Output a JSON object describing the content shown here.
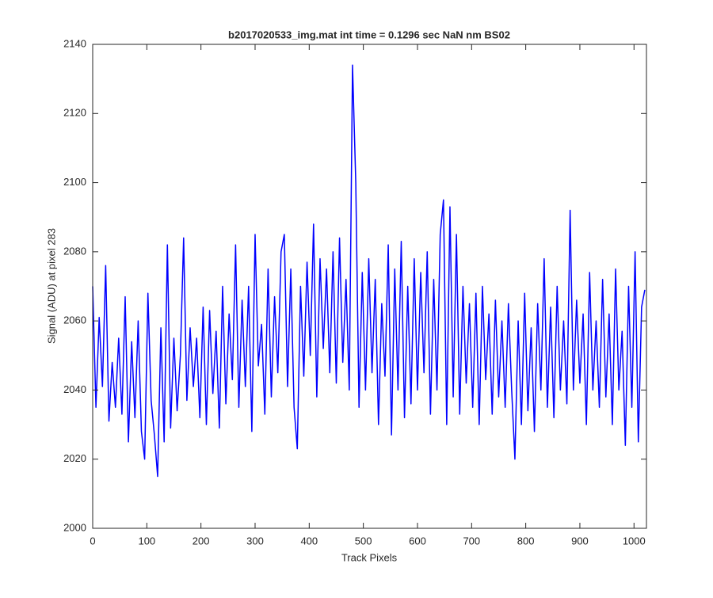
{
  "chart_data": {
    "type": "line",
    "title": "b2017020533_img.mat int time = 0.1296 sec  NaN nm BS02",
    "x_label": "Track Pixels",
    "y_label": "Signal (ADU) at pixel 283",
    "color": "#0000ff",
    "x": [
      0,
      6,
      12,
      18,
      24,
      30,
      36,
      42,
      48,
      54,
      60,
      66,
      72,
      78,
      84,
      90,
      96,
      102,
      108,
      114,
      120,
      126,
      132,
      138,
      144,
      150,
      156,
      162,
      168,
      174,
      180,
      186,
      192,
      198,
      204,
      210,
      216,
      222,
      228,
      234,
      240,
      246,
      252,
      258,
      264,
      270,
      276,
      282,
      288,
      294,
      300,
      306,
      312,
      318,
      324,
      330,
      336,
      342,
      348,
      354,
      360,
      366,
      372,
      378,
      384,
      390,
      396,
      402,
      408,
      414,
      420,
      426,
      432,
      438,
      444,
      450,
      456,
      462,
      468,
      474,
      480,
      486,
      492,
      498,
      504,
      510,
      516,
      522,
      528,
      534,
      540,
      546,
      552,
      558,
      564,
      570,
      576,
      582,
      588,
      594,
      600,
      606,
      612,
      618,
      624,
      630,
      636,
      642,
      648,
      654,
      660,
      666,
      672,
      678,
      684,
      690,
      696,
      702,
      708,
      714,
      720,
      726,
      732,
      738,
      744,
      750,
      756,
      762,
      768,
      774,
      780,
      786,
      792,
      798,
      804,
      810,
      816,
      822,
      828,
      834,
      840,
      846,
      852,
      858,
      864,
      870,
      876,
      882,
      888,
      894,
      900,
      906,
      912,
      918,
      924,
      930,
      936,
      942,
      948,
      954,
      960,
      966,
      972,
      978,
      984,
      990,
      996,
      1002,
      1008,
      1014,
      1020
    ],
    "values": [
      2070,
      2035,
      2061,
      2041,
      2076,
      2031,
      2048,
      2035,
      2055,
      2033,
      2067,
      2025,
      2054,
      2032,
      2060,
      2028,
      2020,
      2068,
      2037,
      2027,
      2015,
      2058,
      2025,
      2082,
      2029,
      2055,
      2034,
      2050,
      2084,
      2037,
      2058,
      2041,
      2055,
      2032,
      2064,
      2030,
      2063,
      2039,
      2057,
      2029,
      2070,
      2036,
      2062,
      2043,
      2082,
      2035,
      2066,
      2041,
      2070,
      2028,
      2085,
      2047,
      2059,
      2033,
      2075,
      2038,
      2067,
      2045,
      2080,
      2085,
      2041,
      2075,
      2035,
      2023,
      2070,
      2044,
      2077,
      2050,
      2088,
      2038,
      2078,
      2052,
      2075,
      2045,
      2080,
      2042,
      2084,
      2048,
      2072,
      2040,
      2134,
      2100,
      2035,
      2074,
      2040,
      2078,
      2045,
      2072,
      2030,
      2065,
      2044,
      2082,
      2027,
      2075,
      2040,
      2083,
      2032,
      2070,
      2036,
      2078,
      2040,
      2074,
      2045,
      2080,
      2033,
      2072,
      2040,
      2085,
      2095,
      2030,
      2093,
      2038,
      2085,
      2033,
      2070,
      2042,
      2065,
      2035,
      2068,
      2030,
      2070,
      2043,
      2062,
      2033,
      2066,
      2038,
      2060,
      2035,
      2065,
      2040,
      2020,
      2060,
      2030,
      2068,
      2034,
      2058,
      2028,
      2065,
      2040,
      2078,
      2035,
      2064,
      2032,
      2070,
      2040,
      2060,
      2036,
      2092,
      2040,
      2066,
      2042,
      2062,
      2030,
      2074,
      2040,
      2060,
      2035,
      2072,
      2038,
      2062,
      2030,
      2075,
      2040,
      2057,
      2024,
      2070,
      2035,
      2080,
      2025,
      2064,
      2069
    ],
    "xlim": [
      0,
      1023
    ],
    "ylim": [
      2000,
      2140
    ],
    "xticks": [
      0,
      100,
      200,
      300,
      400,
      500,
      600,
      700,
      800,
      900,
      1000
    ],
    "yticks": [
      2000,
      2020,
      2040,
      2060,
      2080,
      2100,
      2120,
      2140
    ]
  }
}
